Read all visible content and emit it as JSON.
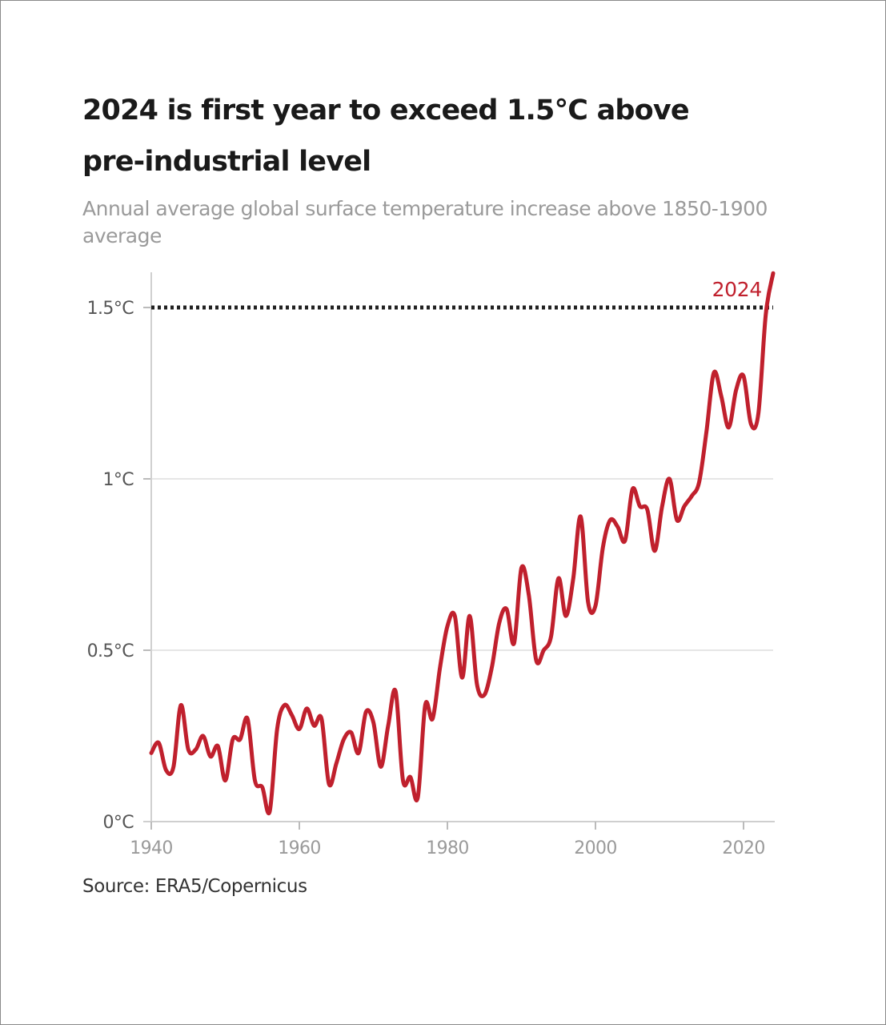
{
  "chart_data": {
    "type": "line",
    "title": "2024 is first year to exceed 1.5°C above pre-industrial level",
    "subtitle": "Annual average global surface temperature increase above 1850-1900 average",
    "source": "Source: ERA5/Copernicus",
    "xlabel": "",
    "ylabel": "",
    "xlim": [
      1940,
      2024
    ],
    "ylim": [
      0,
      1.6
    ],
    "x_ticks": [
      {
        "value": 1940,
        "label": "1940"
      },
      {
        "value": 1960,
        "label": "1960"
      },
      {
        "value": 1980,
        "label": "1980"
      },
      {
        "value": 2000,
        "label": "2000"
      },
      {
        "value": 2020,
        "label": "2020"
      }
    ],
    "y_ticks": [
      {
        "value": 0,
        "label": "0°C"
      },
      {
        "value": 0.5,
        "label": "0.5°C"
      },
      {
        "value": 1,
        "label": "1°C"
      },
      {
        "value": 1.5,
        "label": "1.5°C"
      }
    ],
    "grid": true,
    "reference_line": {
      "value": 1.5,
      "style": "dotted",
      "color": "#222222"
    },
    "annotations": [
      {
        "text": "2024",
        "x": 2024,
        "y": 1.6,
        "color": "#c0202d"
      }
    ],
    "series": [
      {
        "color": "#c0202d",
        "x": [
          1940,
          1941,
          1942,
          1943,
          1944,
          1945,
          1946,
          1947,
          1948,
          1949,
          1950,
          1951,
          1952,
          1953,
          1954,
          1955,
          1956,
          1957,
          1958,
          1959,
          1960,
          1961,
          1962,
          1963,
          1964,
          1965,
          1966,
          1967,
          1968,
          1969,
          1970,
          1971,
          1972,
          1973,
          1974,
          1975,
          1976,
          1977,
          1978,
          1979,
          1980,
          1981,
          1982,
          1983,
          1984,
          1985,
          1986,
          1987,
          1988,
          1989,
          1990,
          1991,
          1992,
          1993,
          1994,
          1995,
          1996,
          1997,
          1998,
          1999,
          2000,
          2001,
          2002,
          2003,
          2004,
          2005,
          2006,
          2007,
          2008,
          2009,
          2010,
          2011,
          2012,
          2013,
          2014,
          2015,
          2016,
          2017,
          2018,
          2019,
          2020,
          2021,
          2022,
          2023,
          2024
        ],
        "values": [
          0.2,
          0.23,
          0.15,
          0.16,
          0.34,
          0.21,
          0.21,
          0.25,
          0.19,
          0.22,
          0.12,
          0.24,
          0.24,
          0.3,
          0.12,
          0.1,
          0.03,
          0.27,
          0.34,
          0.31,
          0.27,
          0.33,
          0.28,
          0.3,
          0.11,
          0.17,
          0.24,
          0.26,
          0.2,
          0.32,
          0.29,
          0.16,
          0.28,
          0.38,
          0.12,
          0.13,
          0.07,
          0.34,
          0.3,
          0.45,
          0.57,
          0.6,
          0.42,
          0.6,
          0.4,
          0.37,
          0.45,
          0.58,
          0.62,
          0.52,
          0.74,
          0.66,
          0.47,
          0.5,
          0.54,
          0.71,
          0.6,
          0.71,
          0.89,
          0.64,
          0.63,
          0.8,
          0.88,
          0.86,
          0.82,
          0.97,
          0.92,
          0.91,
          0.79,
          0.92,
          1.0,
          0.88,
          0.92,
          0.95,
          0.99,
          1.14,
          1.31,
          1.24,
          1.15,
          1.26,
          1.3,
          1.16,
          1.19,
          1.48,
          1.6
        ]
      }
    ]
  }
}
